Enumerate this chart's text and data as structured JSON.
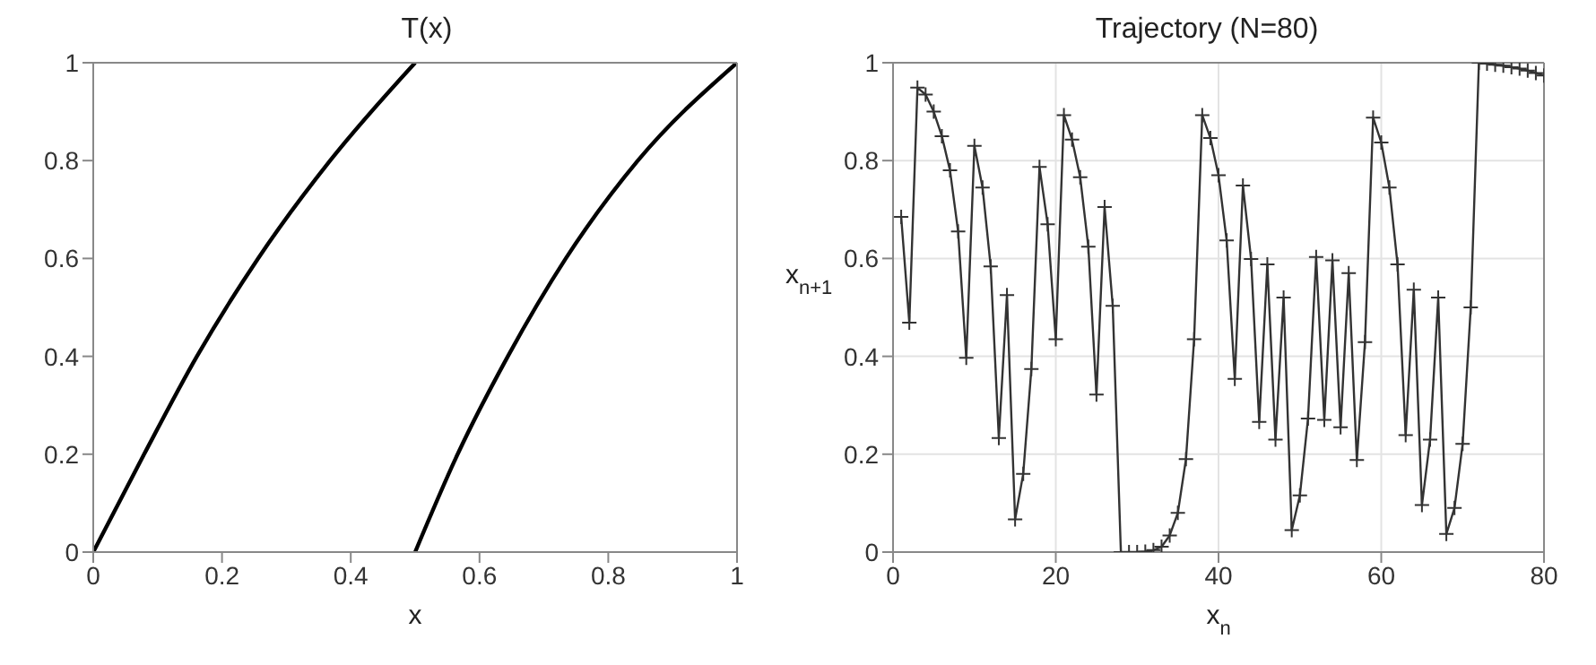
{
  "chart_data": [
    {
      "type": "line",
      "title": "T(x)",
      "xlabel": "x",
      "xlim": [
        0,
        1
      ],
      "ylim": [
        0,
        1
      ],
      "xticks": [
        0,
        0.2,
        0.4,
        0.6,
        0.8,
        1
      ],
      "yticks": [
        0,
        0.2,
        0.4,
        0.6,
        0.8,
        1
      ],
      "marker": "none",
      "line_style": "solid",
      "series": [
        {
          "color": "#000000",
          "x": [
            0,
            0.079,
            0.161,
            0.256,
            0.368,
            0.5
          ],
          "values": [
            0,
            0.2,
            0.4,
            0.6,
            0.8,
            1
          ]
        },
        {
          "color": "#000000",
          "x": [
            0.5,
            0.566,
            0.644,
            0.734,
            0.846,
            1
          ],
          "values": [
            0,
            0.2,
            0.4,
            0.6,
            0.8,
            1
          ]
        }
      ]
    },
    {
      "type": "line",
      "title": "Trajectory (N=80)",
      "xlabel": "x$_{n}$",
      "ylabel": "x$_{n+1}$",
      "xlim": [
        0,
        80
      ],
      "ylim": [
        0,
        1
      ],
      "xticks": [
        0,
        20,
        40,
        60,
        80
      ],
      "yticks": [
        0,
        0.2,
        0.4,
        0.6,
        0.8,
        1
      ],
      "grid": true,
      "marker": "cross",
      "line_style": "solid",
      "series": [
        {
          "color": "#333333",
          "x": [
            1,
            2,
            3,
            4,
            5,
            6,
            7,
            8,
            9,
            10,
            11,
            12,
            13,
            14,
            15,
            16,
            17,
            18,
            19,
            20,
            21,
            22,
            23,
            24,
            25,
            26,
            27,
            28,
            29,
            30,
            31,
            32,
            33,
            34,
            35,
            36,
            37,
            38,
            39,
            40,
            41,
            42,
            43,
            44,
            45,
            46,
            47,
            48,
            49,
            50,
            51,
            52,
            53,
            54,
            55,
            56,
            57,
            58,
            59,
            60,
            61,
            62,
            63,
            64,
            65,
            66,
            67,
            68,
            69,
            70,
            71,
            72,
            73,
            74,
            75,
            76,
            77,
            78,
            79,
            80
          ],
          "values": [
            0.685,
            0.469,
            0.949,
            0.935,
            0.9,
            0.85,
            0.78,
            0.655,
            0.397,
            0.83,
            0.745,
            0.584,
            0.233,
            0.525,
            0.067,
            0.16,
            0.374,
            0.787,
            0.67,
            0.435,
            0.893,
            0.843,
            0.766,
            0.624,
            0.322,
            0.705,
            0.503,
            0,
            0,
            0,
            0.001,
            0.004,
            0.011,
            0.034,
            0.08,
            0.19,
            0.435,
            0.893,
            0.846,
            0.77,
            0.637,
            0.354,
            0.749,
            0.599,
            0.266,
            0.588,
            0.23,
            0.52,
            0.045,
            0.116,
            0.273,
            0.603,
            0.27,
            0.596,
            0.255,
            0.57,
            0.188,
            0.429,
            0.888,
            0.837,
            0.745,
            0.588,
            0.239,
            0.536,
            0.096,
            0.23,
            0.52,
            0.037,
            0.09,
            0.221,
            0.5,
            1,
            0.998,
            0.996,
            0.994,
            0.991,
            0.988,
            0.984,
            0.979,
            0.974
          ]
        }
      ]
    }
  ]
}
